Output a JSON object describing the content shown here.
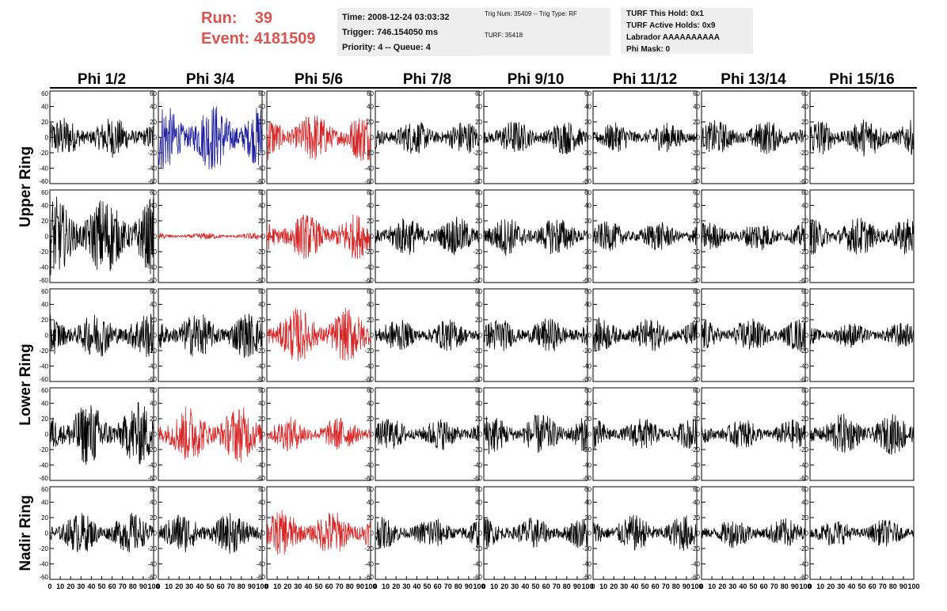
{
  "header": {
    "run_label": "Run:",
    "run_value": "39",
    "event_label": "Event:",
    "event_value": "4181509"
  },
  "info_time": {
    "time": "Time: 2008-12-24 03:03:32",
    "trigger": "Trigger: 746.154050 ms",
    "priority": "Priority: 4 -- Queue: 4"
  },
  "info_trig": {
    "trig": "Trig Num: 35409 -- Trig Type: RF",
    "turf": "TURF: 35418"
  },
  "info_turf": {
    "hold": "TURF This Hold: 0x1",
    "active": "TURF Active Holds: 0x9",
    "labrador": "Labrador AAAAAAAAAA",
    "phimask": "Phi Mask: 0"
  },
  "chart_data": {
    "type": "line",
    "description": "8 x 5 grid of waveform panels (voltage vs time), x range 0-100, y range -60 to 60",
    "columns": [
      "Phi 1/2",
      "Phi 3/4",
      "Phi 5/6",
      "Phi 7/8",
      "Phi 9/10",
      "Phi 11/12",
      "Phi 13/14",
      "Phi 15/16"
    ],
    "row_groups": [
      {
        "label": "Upper Ring",
        "rows": [
          0,
          1
        ]
      },
      {
        "label": "Lower Ring",
        "rows": [
          2,
          3
        ]
      },
      {
        "label": "Nadir Ring",
        "rows": [
          4
        ]
      }
    ],
    "xlim": [
      0,
      100
    ],
    "ylim": [
      -60,
      60
    ],
    "y_ticks": [
      -60,
      -40,
      -20,
      0,
      20,
      40,
      60
    ],
    "x_ticks": [
      0,
      10,
      20,
      30,
      40,
      50,
      60,
      70,
      80,
      90,
      100
    ],
    "colors": {
      "default": "#000000",
      "triggered": "#d62728",
      "highlight": "#1f1f9e"
    },
    "panels": [
      [
        {
          "c": "black",
          "a": 18
        },
        {
          "c": "blue",
          "a": 30
        },
        {
          "c": "red",
          "a": 22
        },
        {
          "c": "black",
          "a": 15
        },
        {
          "c": "black",
          "a": 15
        },
        {
          "c": "black",
          "a": 13
        },
        {
          "c": "black",
          "a": 15
        },
        {
          "c": "black",
          "a": 17
        }
      ],
      [
        {
          "c": "black",
          "a": 35
        },
        {
          "c": "red",
          "a": 3
        },
        {
          "c": "red",
          "a": 20
        },
        {
          "c": "black",
          "a": 17
        },
        {
          "c": "black",
          "a": 17
        },
        {
          "c": "black",
          "a": 13
        },
        {
          "c": "black",
          "a": 13
        },
        {
          "c": "black",
          "a": 17
        }
      ],
      [
        {
          "c": "black",
          "a": 20
        },
        {
          "c": "black",
          "a": 20
        },
        {
          "c": "red",
          "a": 24
        },
        {
          "c": "black",
          "a": 14
        },
        {
          "c": "black",
          "a": 15
        },
        {
          "c": "black",
          "a": 15
        },
        {
          "c": "black",
          "a": 15
        },
        {
          "c": "black",
          "a": 11
        }
      ],
      [
        {
          "c": "black",
          "a": 28
        },
        {
          "c": "red",
          "a": 25
        },
        {
          "c": "red",
          "a": 15
        },
        {
          "c": "black",
          "a": 14
        },
        {
          "c": "black",
          "a": 18
        },
        {
          "c": "black",
          "a": 14
        },
        {
          "c": "black",
          "a": 13
        },
        {
          "c": "black",
          "a": 18
        }
      ],
      [
        {
          "c": "black",
          "a": 18
        },
        {
          "c": "black",
          "a": 18
        },
        {
          "c": "red",
          "a": 20
        },
        {
          "c": "black",
          "a": 14
        },
        {
          "c": "black",
          "a": 14
        },
        {
          "c": "black",
          "a": 16
        },
        {
          "c": "black",
          "a": 13
        },
        {
          "c": "black",
          "a": 12
        }
      ]
    ]
  }
}
